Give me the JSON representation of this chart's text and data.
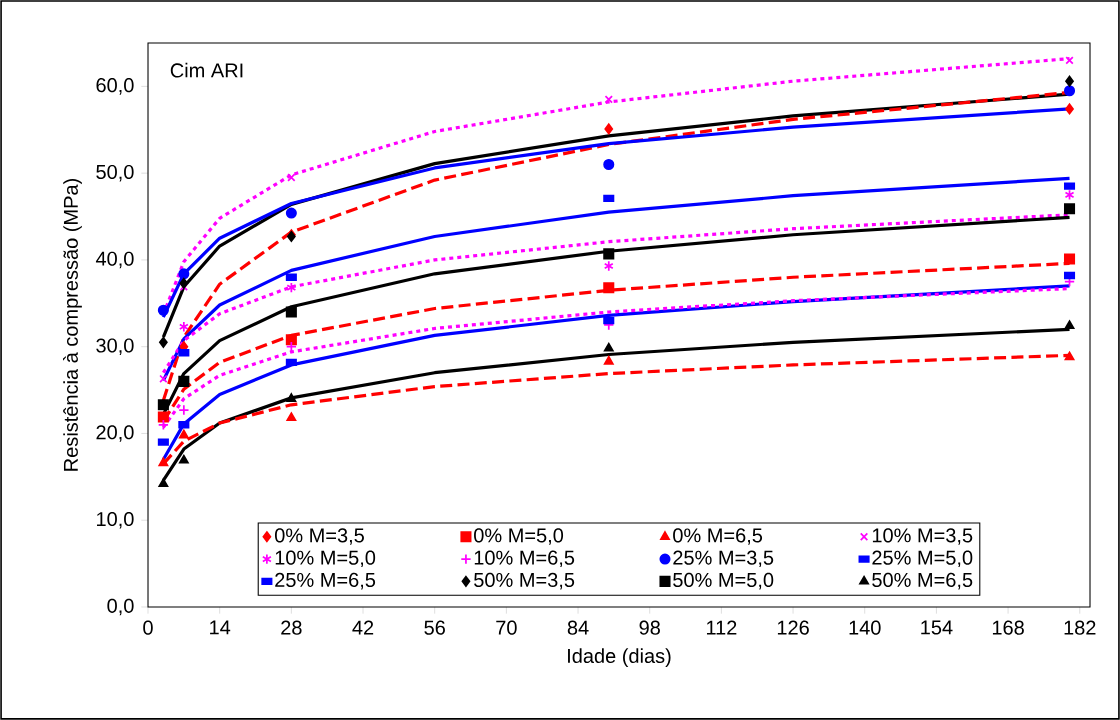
{
  "chart_data": {
    "type": "scatter",
    "xlabel": "Idade (dias)",
    "ylabel": "Resistência à compressão (MPa)",
    "annotations": [
      "Cim ARI"
    ],
    "xlim": [
      0,
      184
    ],
    "ylim": [
      0,
      65
    ],
    "xticks": [
      0,
      14,
      28,
      42,
      56,
      70,
      84,
      98,
      112,
      126,
      140,
      154,
      168,
      182
    ],
    "yticks": [
      {
        "value": 0,
        "label": "0,0"
      },
      {
        "value": 10,
        "label": "10,0"
      },
      {
        "value": 20,
        "label": "20,0"
      },
      {
        "value": 30,
        "label": "30,0"
      },
      {
        "value": 40,
        "label": "40,0"
      },
      {
        "value": 50,
        "label": "50,0"
      },
      {
        "value": 60,
        "label": "60,0"
      }
    ],
    "legend": "bottom",
    "x": [
      3,
      7,
      28,
      90,
      180
    ],
    "series": [
      {
        "type": "line",
        "color": "#ff00ff",
        "line_style": "dotted",
        "x": [
          3,
          7,
          14,
          28,
          56,
          90,
          126,
          180
        ],
        "values": [
          33.7,
          39.8,
          44.8,
          49.8,
          54.8,
          58.2,
          60.6,
          63.2
        ]
      },
      {
        "type": "line",
        "color": "#000000",
        "line_style": "solid",
        "x": [
          3,
          7,
          14,
          28,
          56,
          90,
          126,
          180
        ],
        "values": [
          31.1,
          36.9,
          41.6,
          46.4,
          51.1,
          54.3,
          56.6,
          59.1
        ]
      },
      {
        "type": "line",
        "color": "#ff0000",
        "line_style": "dashed",
        "x": [
          3,
          7,
          14,
          28,
          56,
          90,
          126,
          180
        ],
        "values": [
          23.8,
          31.1,
          37.2,
          43.2,
          49.2,
          53.3,
          56.2,
          59.3
        ]
      },
      {
        "type": "line",
        "color": "#0000ff",
        "line_style": "solid",
        "x": [
          3,
          7,
          14,
          28,
          56,
          90,
          126,
          180
        ],
        "values": [
          33.4,
          38.4,
          42.5,
          46.5,
          50.6,
          53.4,
          55.3,
          57.4
        ]
      },
      {
        "type": "line",
        "color": "#0000ff",
        "line_style": "solid",
        "x": [
          3,
          7,
          14,
          28,
          56,
          90,
          126,
          180
        ],
        "values": [
          26.1,
          30.9,
          34.8,
          38.8,
          42.7,
          45.5,
          47.4,
          49.4
        ]
      },
      {
        "type": "line",
        "color": "#ff00ff",
        "line_style": "dotted",
        "x": [
          3,
          7,
          14,
          28,
          56,
          90,
          126,
          180
        ],
        "values": [
          27.0,
          30.7,
          33.8,
          36.9,
          40.0,
          42.1,
          43.6,
          45.2
        ]
      },
      {
        "type": "line",
        "color": "#000000",
        "line_style": "solid",
        "x": [
          3,
          7,
          14,
          28,
          56,
          90,
          126,
          180
        ],
        "values": [
          22.2,
          26.9,
          30.7,
          34.6,
          38.4,
          41.0,
          42.9,
          44.9
        ]
      },
      {
        "type": "line",
        "color": "#ff0000",
        "line_style": "dashed",
        "x": [
          3,
          7,
          14,
          28,
          56,
          90,
          126,
          180
        ],
        "values": [
          21.4,
          25.1,
          28.2,
          31.3,
          34.4,
          36.5,
          38.0,
          39.6
        ]
      },
      {
        "type": "line",
        "color": "#0000ff",
        "line_style": "solid",
        "x": [
          3,
          7,
          14,
          28,
          56,
          90,
          126,
          180
        ],
        "values": [
          17.0,
          21.1,
          24.5,
          27.9,
          31.3,
          33.6,
          35.2,
          37.0
        ]
      },
      {
        "type": "line",
        "color": "#ff00ff",
        "line_style": "dotted",
        "x": [
          3,
          7,
          14,
          28,
          56,
          90,
          126,
          180
        ],
        "values": [
          20.7,
          24.0,
          26.7,
          29.4,
          32.1,
          34.0,
          35.3,
          36.7
        ]
      },
      {
        "type": "line",
        "color": "#000000",
        "line_style": "solid",
        "x": [
          3,
          7,
          14,
          28,
          56,
          90,
          126,
          180
        ],
        "values": [
          14.6,
          18.2,
          21.2,
          24.1,
          27.0,
          29.1,
          30.5,
          32.0
        ]
      },
      {
        "type": "line",
        "color": "#ff0000",
        "line_style": "dashed",
        "x": [
          3,
          7,
          14,
          28,
          56,
          90,
          126,
          180
        ],
        "values": [
          16.5,
          19.1,
          21.2,
          23.3,
          25.4,
          26.9,
          27.9,
          29.0
        ]
      },
      {
        "name": "0% M=3,5",
        "color": "#ff0000",
        "marker": "diamond",
        "values": [
          null,
          30.0,
          42.9,
          55.1,
          57.4
        ]
      },
      {
        "name": "0% M=5,0",
        "color": "#ff0000",
        "marker": "square",
        "values": [
          21.9,
          null,
          30.8,
          36.8,
          40.1
        ]
      },
      {
        "name": "0% M=6,5",
        "color": "#ff0000",
        "marker": "triangle",
        "values": [
          16.6,
          19.8,
          21.8,
          28.3,
          28.8
        ]
      },
      {
        "name": "10% M=3,5",
        "color": "#ff00ff",
        "marker": "cross",
        "values": [
          26.3,
          36.9,
          49.5,
          58.5,
          63.0
        ]
      },
      {
        "name": "10% M=5,0",
        "color": "#ff00ff",
        "values": [
          null,
          32.3,
          36.8,
          39.3,
          47.5
        ]
      },
      {
        "name": "10% M=6,5",
        "color": "#ff00ff",
        "marker": "plus",
        "values": [
          21.0,
          22.7,
          30.0,
          32.5,
          37.5
        ]
      },
      {
        "name": "25% M=3,5",
        "color": "#0000ff",
        "marker": "circle",
        "values": [
          34.2,
          38.4,
          45.4,
          51.0,
          59.5
        ]
      },
      {
        "name": "25% M=5,0",
        "color": "#0000ff",
        "marker": "square",
        "values": [
          null,
          29.3,
          38.0,
          47.1,
          48.5
        ]
      },
      {
        "name": "25% M=6,5",
        "color": "#0000ff",
        "marker": "square",
        "values": [
          19.0,
          21.0,
          28.2,
          33.0,
          38.2
        ]
      },
      {
        "name": "50% M=3,5",
        "color": "#000000",
        "marker": "diamond",
        "values": [
          30.5,
          37.3,
          42.7,
          null,
          60.6
        ]
      },
      {
        "name": "50% M=5,0",
        "color": "#000000",
        "marker": "square",
        "values": [
          23.3,
          26.0,
          34.0,
          40.7,
          45.9
        ]
      },
      {
        "name": "50% M=6,5",
        "color": "#000000",
        "marker": "triangle",
        "values": [
          14.2,
          16.9,
          24.0,
          29.8,
          32.4
        ]
      }
    ]
  }
}
